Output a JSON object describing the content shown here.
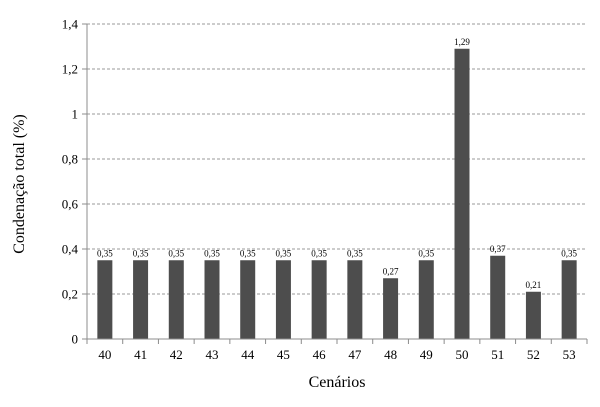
{
  "chart_data": {
    "type": "bar",
    "xlabel": "Cenários",
    "ylabel": "Condenação total (%)",
    "ylim": [
      0,
      1.4
    ],
    "yticks": [
      "0",
      "0,2",
      "0,4",
      "0,6",
      "0,8",
      "1",
      "1,2",
      "1,4"
    ],
    "categories": [
      "40",
      "41",
      "42",
      "43",
      "44",
      "45",
      "46",
      "47",
      "48",
      "49",
      "50",
      "51",
      "52",
      "53"
    ],
    "values": [
      0.35,
      0.35,
      0.35,
      0.35,
      0.35,
      0.35,
      0.35,
      0.35,
      0.27,
      0.35,
      1.29,
      0.37,
      0.21,
      0.35
    ],
    "value_labels": [
      "0,35",
      "0,35",
      "0,35",
      "0,35",
      "0,35",
      "0,35",
      "0,35",
      "0,35",
      "0,27",
      "0,35",
      "1,29",
      "0,37",
      "0,21",
      "0,35"
    ],
    "bar_color": "#4d4d4d",
    "grid": true,
    "legend": "none"
  }
}
